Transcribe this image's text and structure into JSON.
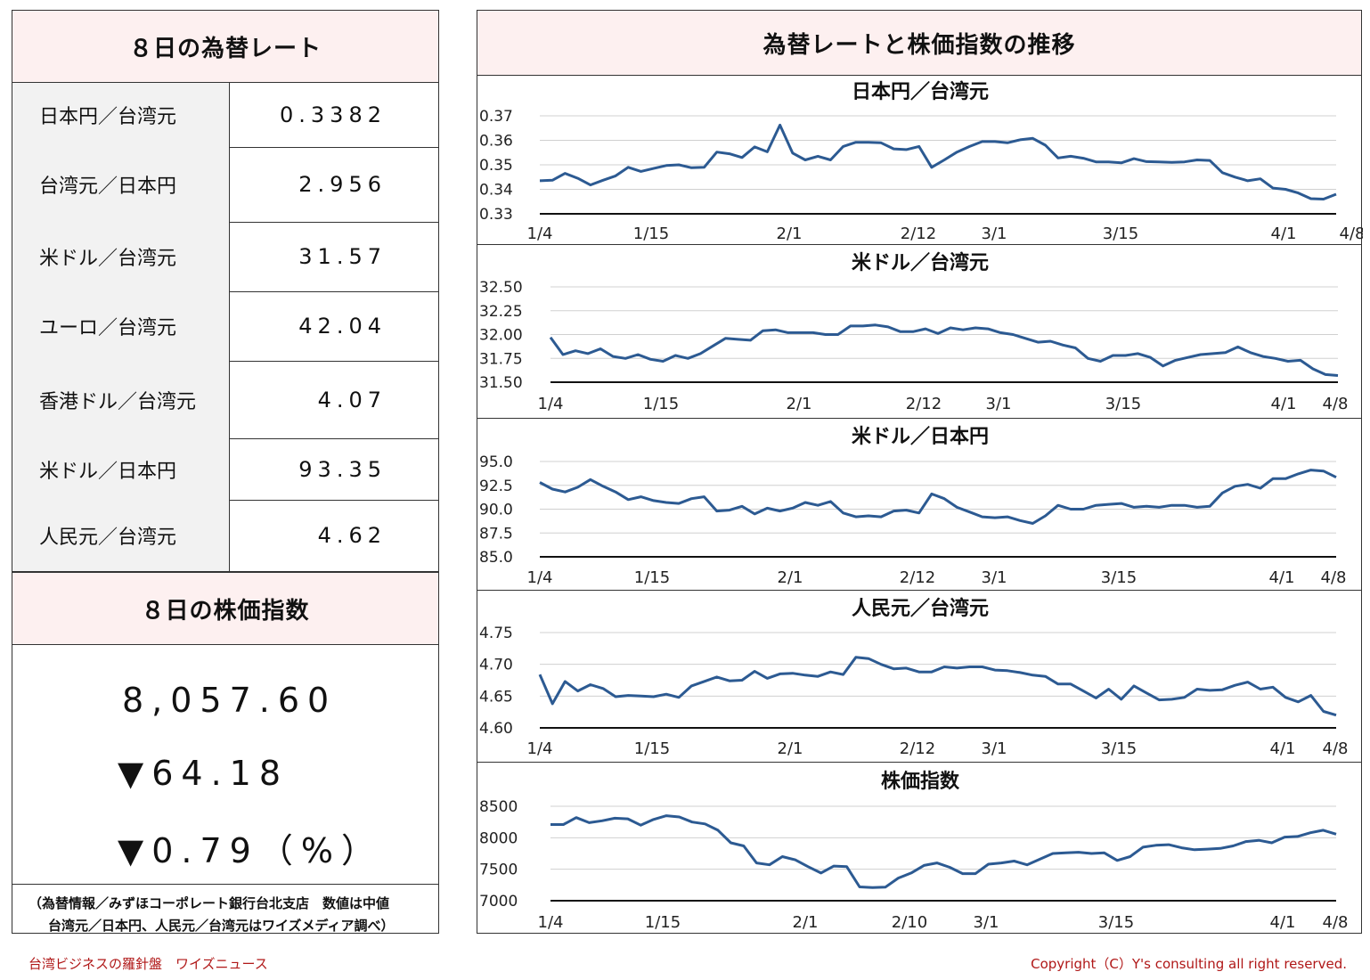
{
  "left": {
    "rates_title": "８日の為替レート",
    "rates": [
      {
        "label": "日本円／台湾元",
        "value": "0.3382"
      },
      {
        "label": "台湾元／日本円",
        "value": "2.956"
      },
      {
        "label": "米ドル／台湾元",
        "value": "31.57"
      },
      {
        "label": "ユーロ／台湾元",
        "value": "42.04"
      },
      {
        "label": "香港ドル／台湾元",
        "value": "4.07"
      },
      {
        "label": "米ドル／日本円",
        "value": "93.35"
      },
      {
        "label": "人民元／台湾元",
        "value": "4.62"
      }
    ],
    "stock_title": "８日の株価指数",
    "stock_value": "8,057.60",
    "stock_change": "▼64.18",
    "stock_change_pct": "▼0.79（%）",
    "note_line1": "（為替情報／みずほコーポレート銀行台北支店　数値は中値",
    "note_line2": "台湾元／日本円、人民元／台湾元はワイズメディア調べ）"
  },
  "right_title": "為替レートと株価指数の推移",
  "footer": {
    "left": "台湾ビジネスの羅針盤　ワイズニュース",
    "right": "Copyright（C）Y's consulting all right reserved."
  },
  "chart_data": [
    {
      "type": "line",
      "title": "日本円／台湾元",
      "ylim": [
        0.33,
        0.37
      ],
      "yticks": [
        "0.37",
        "0.36",
        "0.35",
        "0.34",
        "0.33"
      ],
      "xticks": [
        "1/4",
        "1/15",
        "2/1",
        "2/12",
        "3/1",
        "3/15",
        "4/1",
        "4/8"
      ],
      "color": "#2c5a92",
      "values": [
        0.3435,
        0.3437,
        0.3465,
        0.3445,
        0.3418,
        0.3437,
        0.3455,
        0.349,
        0.3473,
        0.3485,
        0.3497,
        0.35,
        0.3488,
        0.349,
        0.3552,
        0.3545,
        0.353,
        0.3573,
        0.3553,
        0.3662,
        0.3548,
        0.352,
        0.3535,
        0.352,
        0.3575,
        0.3592,
        0.3592,
        0.359,
        0.3565,
        0.3562,
        0.3575,
        0.349,
        0.352,
        0.3552,
        0.3575,
        0.3595,
        0.3595,
        0.359,
        0.3602,
        0.3608,
        0.358,
        0.3528,
        0.3535,
        0.3527,
        0.3512,
        0.3512,
        0.3508,
        0.3525,
        0.3513,
        0.3512,
        0.351,
        0.3512,
        0.352,
        0.3518,
        0.3468,
        0.345,
        0.3435,
        0.3443,
        0.3405,
        0.34,
        0.3385,
        0.3362,
        0.336,
        0.338
      ]
    },
    {
      "type": "line",
      "title": "米ドル／台湾元",
      "ylim": [
        31.5,
        32.5
      ],
      "yticks": [
        "32.50",
        "32.25",
        "32.00",
        "31.75",
        "31.50"
      ],
      "xticks": [
        "1/4",
        "1/15",
        "2/1",
        "2/12",
        "3/1",
        "3/15",
        "4/1",
        "4/8"
      ],
      "color": "#2c5a92",
      "values": [
        31.97,
        31.79,
        31.83,
        31.8,
        31.85,
        31.77,
        31.75,
        31.79,
        31.74,
        31.72,
        31.78,
        31.75,
        31.8,
        31.88,
        31.96,
        31.95,
        31.94,
        32.04,
        32.05,
        32.02,
        32.02,
        32.02,
        32.0,
        32.0,
        32.09,
        32.09,
        32.1,
        32.08,
        32.03,
        32.03,
        32.06,
        32.01,
        32.07,
        32.05,
        32.07,
        32.06,
        32.02,
        32.0,
        31.96,
        31.92,
        31.93,
        31.89,
        31.86,
        31.75,
        31.72,
        31.78,
        31.78,
        31.8,
        31.76,
        31.67,
        31.73,
        31.76,
        31.79,
        31.8,
        31.81,
        31.87,
        31.81,
        31.77,
        31.75,
        31.72,
        31.73,
        31.64,
        31.58,
        31.57
      ]
    },
    {
      "type": "line",
      "title": "米ドル／日本円",
      "ylim": [
        85.0,
        95.0
      ],
      "yticks": [
        "95.0",
        "92.5",
        "90.0",
        "87.5",
        "85.0"
      ],
      "xticks": [
        "1/4",
        "1/15",
        "2/1",
        "2/12",
        "3/1",
        "3/15",
        "4/1",
        "4/8"
      ],
      "color": "#2c5a92",
      "values": [
        92.8,
        92.1,
        91.8,
        92.3,
        93.1,
        92.4,
        91.8,
        91.0,
        91.3,
        90.9,
        90.7,
        90.6,
        91.1,
        91.3,
        89.8,
        89.9,
        90.3,
        89.5,
        90.1,
        89.8,
        90.1,
        90.7,
        90.4,
        90.8,
        89.6,
        89.2,
        89.3,
        89.2,
        89.8,
        89.9,
        89.6,
        91.6,
        91.1,
        90.2,
        89.7,
        89.2,
        89.1,
        89.2,
        88.8,
        88.5,
        89.3,
        90.4,
        90.0,
        90.0,
        90.4,
        90.5,
        90.6,
        90.2,
        90.3,
        90.2,
        90.4,
        90.4,
        90.2,
        90.3,
        91.7,
        92.4,
        92.6,
        92.2,
        93.2,
        93.2,
        93.7,
        94.1,
        94.0,
        93.35
      ]
    },
    {
      "type": "line",
      "title": "人民元／台湾元",
      "ylim": [
        4.6,
        4.75
      ],
      "yticks": [
        "4.75",
        "4.70",
        "4.65",
        "4.60"
      ],
      "xticks": [
        "1/4",
        "1/15",
        "2/1",
        "2/12",
        "3/1",
        "3/15",
        "4/1",
        "4/8"
      ],
      "color": "#2c5a92",
      "values": [
        4.684,
        4.638,
        4.673,
        4.658,
        4.668,
        4.662,
        4.649,
        4.651,
        4.65,
        4.649,
        4.653,
        4.648,
        4.666,
        4.673,
        4.68,
        4.674,
        4.675,
        4.689,
        4.678,
        4.685,
        4.686,
        4.683,
        4.681,
        4.688,
        4.684,
        4.711,
        4.709,
        4.7,
        4.693,
        4.694,
        4.688,
        4.688,
        4.696,
        4.694,
        4.696,
        4.696,
        4.691,
        4.69,
        4.687,
        4.683,
        4.681,
        4.669,
        4.669,
        4.658,
        4.647,
        4.661,
        4.645,
        4.666,
        4.655,
        4.644,
        4.645,
        4.648,
        4.661,
        4.659,
        4.66,
        4.667,
        4.672,
        4.661,
        4.664,
        4.648,
        4.641,
        4.651,
        4.626,
        4.62
      ]
    },
    {
      "type": "line",
      "title": "株価指数",
      "ylim": [
        7000,
        8500
      ],
      "yticks": [
        "8500",
        "8000",
        "7500",
        "7000"
      ],
      "xticks": [
        "1/4",
        "1/15",
        "2/1",
        "2/10",
        "3/1",
        "3/15",
        "4/1",
        "4/8"
      ],
      "color": "#2c5a92",
      "values": [
        8210,
        8210,
        8320,
        8240,
        8270,
        8310,
        8300,
        8200,
        8290,
        8350,
        8330,
        8250,
        8220,
        8120,
        7920,
        7870,
        7600,
        7570,
        7700,
        7650,
        7540,
        7440,
        7550,
        7540,
        7220,
        7210,
        7215,
        7360,
        7440,
        7560,
        7600,
        7530,
        7430,
        7430,
        7580,
        7600,
        7630,
        7570,
        7660,
        7750,
        7760,
        7770,
        7750,
        7760,
        7640,
        7700,
        7850,
        7880,
        7890,
        7840,
        7810,
        7820,
        7830,
        7870,
        7940,
        7960,
        7920,
        8010,
        8020,
        8080,
        8120,
        8057.6
      ]
    }
  ]
}
